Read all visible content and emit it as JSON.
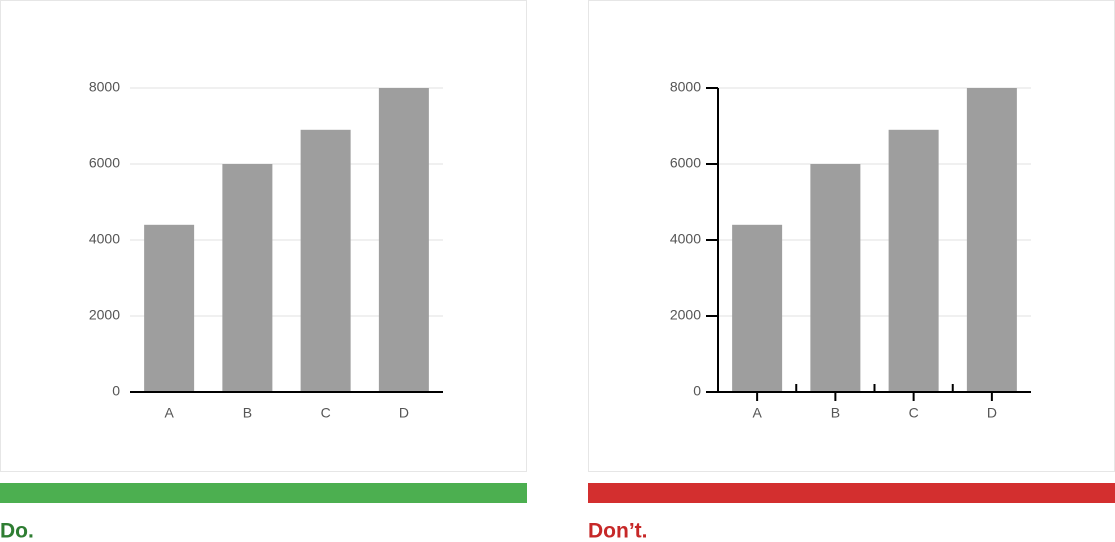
{
  "chart_data": [
    {
      "type": "bar",
      "categories": [
        "A",
        "B",
        "C",
        "D"
      ],
      "values": [
        4400,
        6000,
        6900,
        8000
      ],
      "color": "#9e9e9e",
      "ylim": [
        0,
        8000
      ],
      "yticks": [
        0,
        2000,
        4000,
        6000,
        8000
      ],
      "grid": true,
      "axis_lines": false,
      "caption": "Do.",
      "caption_color": "#2e7d32",
      "accent_color": "#4caf50"
    },
    {
      "type": "bar",
      "categories": [
        "A",
        "B",
        "C",
        "D"
      ],
      "values": [
        4400,
        6000,
        6900,
        8000
      ],
      "color": "#9e9e9e",
      "ylim": [
        0,
        8000
      ],
      "yticks": [
        0,
        2000,
        4000,
        6000,
        8000
      ],
      "grid": true,
      "axis_lines": true,
      "caption": "Don’t.",
      "caption_color": "#c62828",
      "accent_color": "#d32f2f"
    }
  ]
}
